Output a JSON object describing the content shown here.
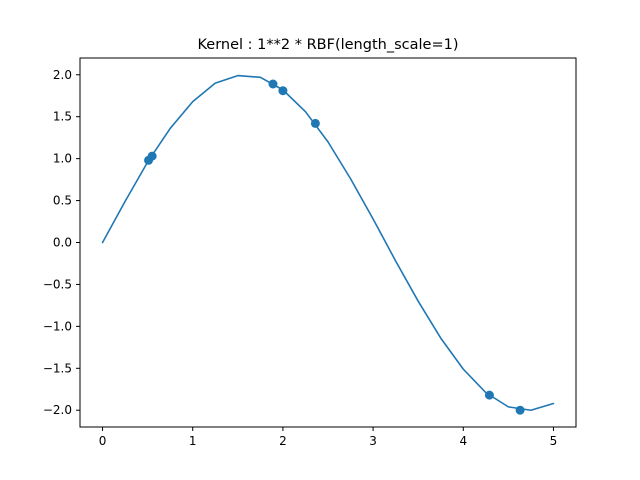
{
  "chart_data": {
    "type": "line",
    "title": "Kernel : 1**2 * RBF(length_scale=1)",
    "xlabel": "",
    "ylabel": "",
    "xlim": [
      -0.25,
      5.25
    ],
    "ylim": [
      -2.2,
      2.2
    ],
    "grid": false,
    "legend": "none",
    "x_ticks": [
      0,
      1,
      2,
      3,
      4,
      5
    ],
    "y_ticks": [
      -2.0,
      -1.5,
      -1.0,
      -0.5,
      0.0,
      0.5,
      1.0,
      1.5,
      2.0
    ],
    "x_tick_labels": [
      "0",
      "1",
      "2",
      "3",
      "4",
      "5"
    ],
    "y_tick_labels": [
      "−2.0",
      "−1.5",
      "−1.0",
      "−0.5",
      "0.0",
      "0.5",
      "1.0",
      "1.5",
      "2.0"
    ],
    "series": [
      {
        "type": "line",
        "color": "#1f77b4",
        "x": [
          0.0,
          0.25,
          0.5,
          0.75,
          1.0,
          1.25,
          1.5,
          1.75,
          2.0,
          2.25,
          2.5,
          2.75,
          3.0,
          3.25,
          3.5,
          3.75,
          4.0,
          4.25,
          4.5,
          4.75,
          5.0
        ],
        "y": [
          0.0,
          0.49,
          0.96,
          1.36,
          1.68,
          1.9,
          1.99,
          1.97,
          1.82,
          1.56,
          1.2,
          0.76,
          0.28,
          -0.22,
          -0.7,
          -1.14,
          -1.51,
          -1.79,
          -1.96,
          -2.0,
          -1.92
        ]
      },
      {
        "type": "scatter",
        "color": "#1f77b4",
        "x": [
          0.51,
          0.55,
          1.89,
          2.0,
          2.36,
          4.29,
          4.63
        ],
        "y": [
          0.98,
          1.03,
          1.89,
          1.81,
          1.42,
          -1.82,
          -2.0
        ]
      }
    ]
  }
}
